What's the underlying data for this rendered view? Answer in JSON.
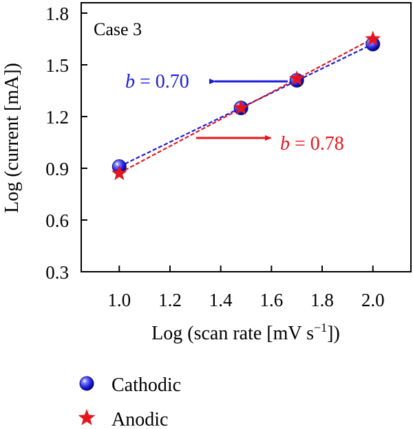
{
  "chart_data": {
    "type": "scatter",
    "annotation_case": "Case 3",
    "xlabel_main": "Log (scan rate [mV s",
    "xlabel_sup": "−1",
    "xlabel_end": "])",
    "ylabel": "Log (current [mA])",
    "xlim": [
      0.85,
      2.15
    ],
    "ylim": [
      0.3,
      1.86
    ],
    "xticks": [
      1.0,
      1.2,
      1.4,
      1.6,
      1.8,
      2.0
    ],
    "yticks": [
      0.3,
      0.6,
      0.9,
      1.2,
      1.5,
      1.8
    ],
    "xtick_labels": [
      "1.0",
      "1.2",
      "1.4",
      "1.6",
      "1.8",
      "2.0"
    ],
    "ytick_labels": [
      "0.3",
      "0.6",
      "0.9",
      "1.2",
      "1.5",
      "1.8"
    ],
    "series": [
      {
        "name": "Cathodic",
        "marker": "circle",
        "color": "#1a1adc",
        "x": [
          1.0,
          1.48,
          1.7,
          2.0
        ],
        "y": [
          0.91,
          1.25,
          1.41,
          1.62
        ],
        "b_prefix": "b",
        "b_value": "= 0.70"
      },
      {
        "name": "Anodic",
        "marker": "star",
        "color": "#e8141c",
        "x": [
          1.0,
          1.48,
          1.7,
          2.0
        ],
        "y": [
          0.87,
          1.25,
          1.42,
          1.65
        ],
        "b_prefix": "b",
        "b_value": "= 0.78"
      }
    ]
  }
}
